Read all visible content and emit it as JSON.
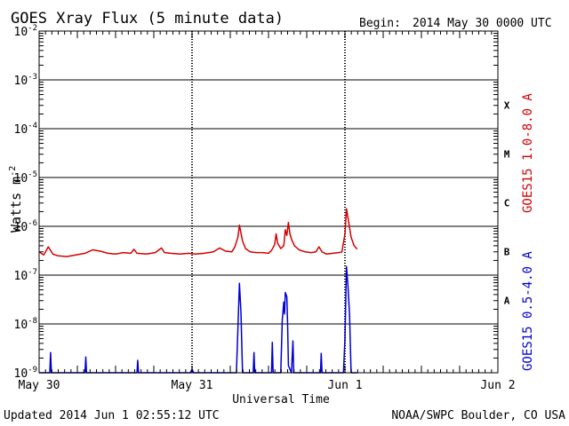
{
  "header": {
    "title": "GOES Xray Flux (5 minute data)",
    "begin_label": "Begin:",
    "begin_value": "2014 May 30 0000 UTC"
  },
  "footer": {
    "updated": "Updated 2014 Jun  1 02:55:12 UTC",
    "credit": "NOAA/SWPC Boulder, CO USA"
  },
  "colors": {
    "long_channel": "#d40000",
    "short_channel": "#0000d4",
    "grid": "#000000"
  },
  "chart_data": {
    "type": "line",
    "y_scale": "log",
    "ylabel": "Watts m",
    "ylabel_superscript": "-2",
    "xlabel": "Universal Time",
    "x_ticks": [
      "May 30",
      "May 31",
      "Jun 1",
      "Jun 2"
    ],
    "x_range_days": [
      "May 30",
      "Jun 2"
    ],
    "ylim": [
      1e-09,
      0.01
    ],
    "y_ticks": [
      {
        "base": "10",
        "exp": "-9"
      },
      {
        "base": "10",
        "exp": "-8"
      },
      {
        "base": "10",
        "exp": "-7"
      },
      {
        "base": "10",
        "exp": "-6"
      },
      {
        "base": "10",
        "exp": "-5"
      },
      {
        "base": "10",
        "exp": "-4"
      },
      {
        "base": "10",
        "exp": "-3"
      },
      {
        "base": "10",
        "exp": "-2"
      }
    ],
    "flare_classes": [
      "A",
      "B",
      "C",
      "M",
      "X"
    ],
    "series": [
      {
        "name": "GOES15 1.0-8.0 A",
        "color": "#d40000",
        "points": [
          [
            0.0,
            3e-07
          ],
          [
            0.03,
            2.6e-07
          ],
          [
            0.06,
            3.8e-07
          ],
          [
            0.09,
            2.7e-07
          ],
          [
            0.12,
            2.5e-07
          ],
          [
            0.18,
            2.4e-07
          ],
          [
            0.24,
            2.6e-07
          ],
          [
            0.3,
            2.8e-07
          ],
          [
            0.35,
            3.3e-07
          ],
          [
            0.4,
            3.1e-07
          ],
          [
            0.45,
            2.8e-07
          ],
          [
            0.5,
            2.7e-07
          ],
          [
            0.55,
            2.9e-07
          ],
          [
            0.6,
            2.8e-07
          ],
          [
            0.62,
            3.4e-07
          ],
          [
            0.64,
            2.8e-07
          ],
          [
            0.7,
            2.7e-07
          ],
          [
            0.76,
            2.9e-07
          ],
          [
            0.8,
            3.6e-07
          ],
          [
            0.82,
            2.9e-07
          ],
          [
            0.86,
            2.8e-07
          ],
          [
            0.92,
            2.7e-07
          ],
          [
            0.98,
            2.8e-07
          ],
          [
            1.02,
            2.7e-07
          ],
          [
            1.08,
            2.8e-07
          ],
          [
            1.14,
            3e-07
          ],
          [
            1.18,
            3.6e-07
          ],
          [
            1.22,
            3.1e-07
          ],
          [
            1.26,
            3e-07
          ],
          [
            1.28,
            3.8e-07
          ],
          [
            1.3,
            6e-07
          ],
          [
            1.31,
            1.05e-06
          ],
          [
            1.33,
            5e-07
          ],
          [
            1.35,
            3.5e-07
          ],
          [
            1.38,
            3e-07
          ],
          [
            1.42,
            2.9e-07
          ],
          [
            1.46,
            2.9e-07
          ],
          [
            1.5,
            2.8e-07
          ],
          [
            1.52,
            3.2e-07
          ],
          [
            1.54,
            4.2e-07
          ],
          [
            1.55,
            7e-07
          ],
          [
            1.56,
            4.5e-07
          ],
          [
            1.58,
            3.5e-07
          ],
          [
            1.6,
            4e-07
          ],
          [
            1.61,
            8.5e-07
          ],
          [
            1.62,
            6.5e-07
          ],
          [
            1.63,
            1.2e-06
          ],
          [
            1.64,
            7e-07
          ],
          [
            1.65,
            5.5e-07
          ],
          [
            1.67,
            4e-07
          ],
          [
            1.7,
            3.3e-07
          ],
          [
            1.74,
            3e-07
          ],
          [
            1.78,
            2.9e-07
          ],
          [
            1.81,
            3e-07
          ],
          [
            1.83,
            3.8e-07
          ],
          [
            1.85,
            3e-07
          ],
          [
            1.88,
            2.7e-07
          ],
          [
            1.92,
            2.8e-07
          ],
          [
            1.96,
            2.9e-07
          ],
          [
            1.98,
            3e-07
          ],
          [
            2.0,
            7e-07
          ],
          [
            2.01,
            2.3e-06
          ],
          [
            2.02,
            1.5e-06
          ],
          [
            2.04,
            6e-07
          ],
          [
            2.06,
            4e-07
          ],
          [
            2.08,
            3.4e-07
          ]
        ]
      },
      {
        "name": "GOES15 0.5-4.0 A",
        "color": "#0000d4",
        "points": [
          [
            0.0,
            1e-09
          ],
          [
            0.07,
            1e-09
          ],
          [
            0.075,
            2.6e-09
          ],
          [
            0.08,
            1e-09
          ],
          [
            0.3,
            1e-09
          ],
          [
            0.305,
            2.1e-09
          ],
          [
            0.31,
            1e-09
          ],
          [
            0.64,
            1e-09
          ],
          [
            0.645,
            1.8e-09
          ],
          [
            0.65,
            1e-09
          ],
          [
            0.99,
            1e-09
          ],
          [
            1.0,
            1.2e-09
          ],
          [
            1.01,
            1e-09
          ],
          [
            1.29,
            1e-09
          ],
          [
            1.3,
            8e-09
          ],
          [
            1.31,
            6.8e-08
          ],
          [
            1.32,
            1.8e-08
          ],
          [
            1.33,
            1e-09
          ],
          [
            1.4,
            1e-09
          ],
          [
            1.405,
            2.6e-09
          ],
          [
            1.41,
            1e-09
          ],
          [
            1.52,
            1e-09
          ],
          [
            1.525,
            4.2e-09
          ],
          [
            1.53,
            1e-09
          ],
          [
            1.58,
            1e-09
          ],
          [
            1.59,
            1.2e-08
          ],
          [
            1.6,
            2.8e-08
          ],
          [
            1.605,
            1.6e-08
          ],
          [
            1.61,
            4.4e-08
          ],
          [
            1.62,
            3.6e-08
          ],
          [
            1.625,
            1e-08
          ],
          [
            1.63,
            1.4e-09
          ],
          [
            1.65,
            1e-09
          ],
          [
            1.66,
            4.5e-09
          ],
          [
            1.665,
            1e-09
          ],
          [
            1.84,
            1e-09
          ],
          [
            1.845,
            2.5e-09
          ],
          [
            1.85,
            1e-09
          ],
          [
            1.99,
            1e-09
          ],
          [
            2.0,
            5e-09
          ],
          [
            2.01,
            1.5e-07
          ],
          [
            2.02,
            6e-08
          ],
          [
            2.03,
            1.5e-08
          ],
          [
            2.04,
            1e-09
          ],
          [
            2.08,
            1e-09
          ]
        ]
      }
    ]
  }
}
